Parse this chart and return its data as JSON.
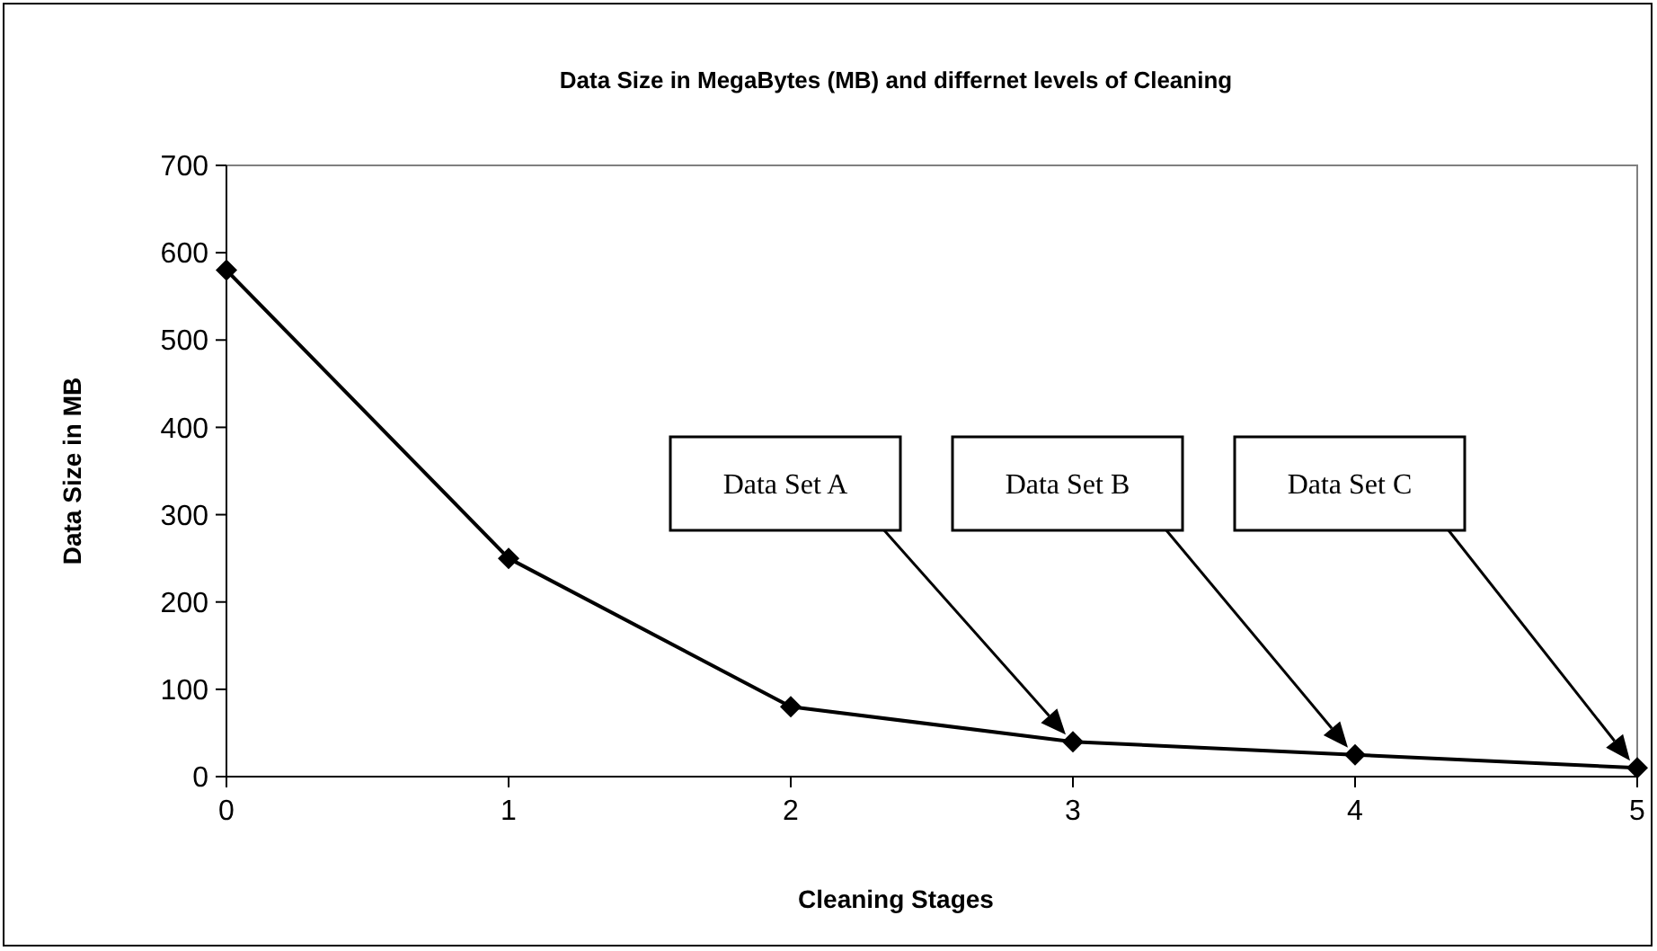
{
  "chart_data": {
    "type": "line",
    "title": "Data Size in MegaBytes (MB) and differnet levels of Cleaning",
    "xlabel": "Cleaning Stages",
    "ylabel": "Data Size in MB",
    "x": [
      0,
      1,
      2,
      3,
      4,
      5
    ],
    "series": [
      {
        "color": "#000000",
        "values": [
          580,
          250,
          80,
          40,
          25,
          10
        ]
      }
    ],
    "xlim": [
      0,
      5
    ],
    "xticks": [
      0,
      1,
      2,
      3,
      4,
      5
    ],
    "ylim": [
      0,
      700
    ],
    "yticks": [
      0,
      100,
      200,
      300,
      400,
      500,
      600,
      700
    ],
    "grid": false,
    "marker": "diamond",
    "line_style": "solid",
    "annotations": [
      "Data Set A",
      "Data Set B",
      "Data Set C"
    ]
  }
}
